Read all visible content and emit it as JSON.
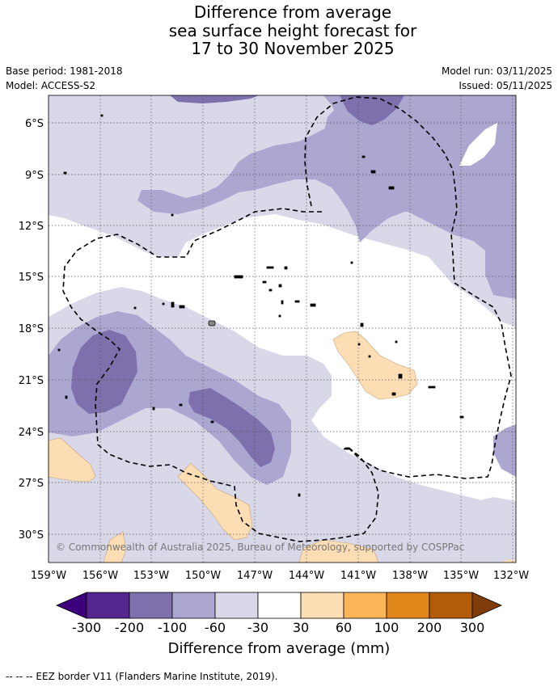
{
  "title": {
    "line1": "Difference from average",
    "line2": "sea surface height forecast for",
    "line3": "17 to 30 November 2025"
  },
  "meta": {
    "base_period": "Base period: 1981-2018",
    "model": "Model: ACCESS-S2",
    "model_run": "Model run: 03/11/2025",
    "issued": "Issued: 05/11/2025"
  },
  "map": {
    "lat_labels": [
      "6°S",
      "9°S",
      "12°S",
      "15°S",
      "18°S",
      "21°S",
      "24°S",
      "27°S",
      "30°S"
    ],
    "lon_labels": [
      "159°W",
      "156°W",
      "153°W",
      "150°W",
      "147°W",
      "144°W",
      "141°W",
      "138°W",
      "135°W",
      "132°W"
    ],
    "copyright": "© Commonwealth of Australia 2025, Bureau of Meteorology, supported by COSPPac"
  },
  "colorbar": {
    "labels": [
      "-300",
      "-200",
      "-100",
      "-60",
      "-30",
      "30",
      "60",
      "100",
      "200",
      "300"
    ],
    "colors": [
      "#3f007d",
      "#54278f",
      "#7e6fad",
      "#aba7d0",
      "#d8d8e9",
      "#ffffff",
      "#fddeb4",
      "#fbb659",
      "#e1861b",
      "#b35c08",
      "#7f3b08"
    ],
    "title": "Difference from average (mm)"
  },
  "footer": {
    "legend": "-- -- -- EEZ border V11 (Flanders Marine Institute, 2019)."
  },
  "colors": {
    "neg30": "#d8d8e9",
    "neg60": "#aba7d0",
    "neg100": "#7e6fad",
    "pos30": "#fddeb4"
  }
}
